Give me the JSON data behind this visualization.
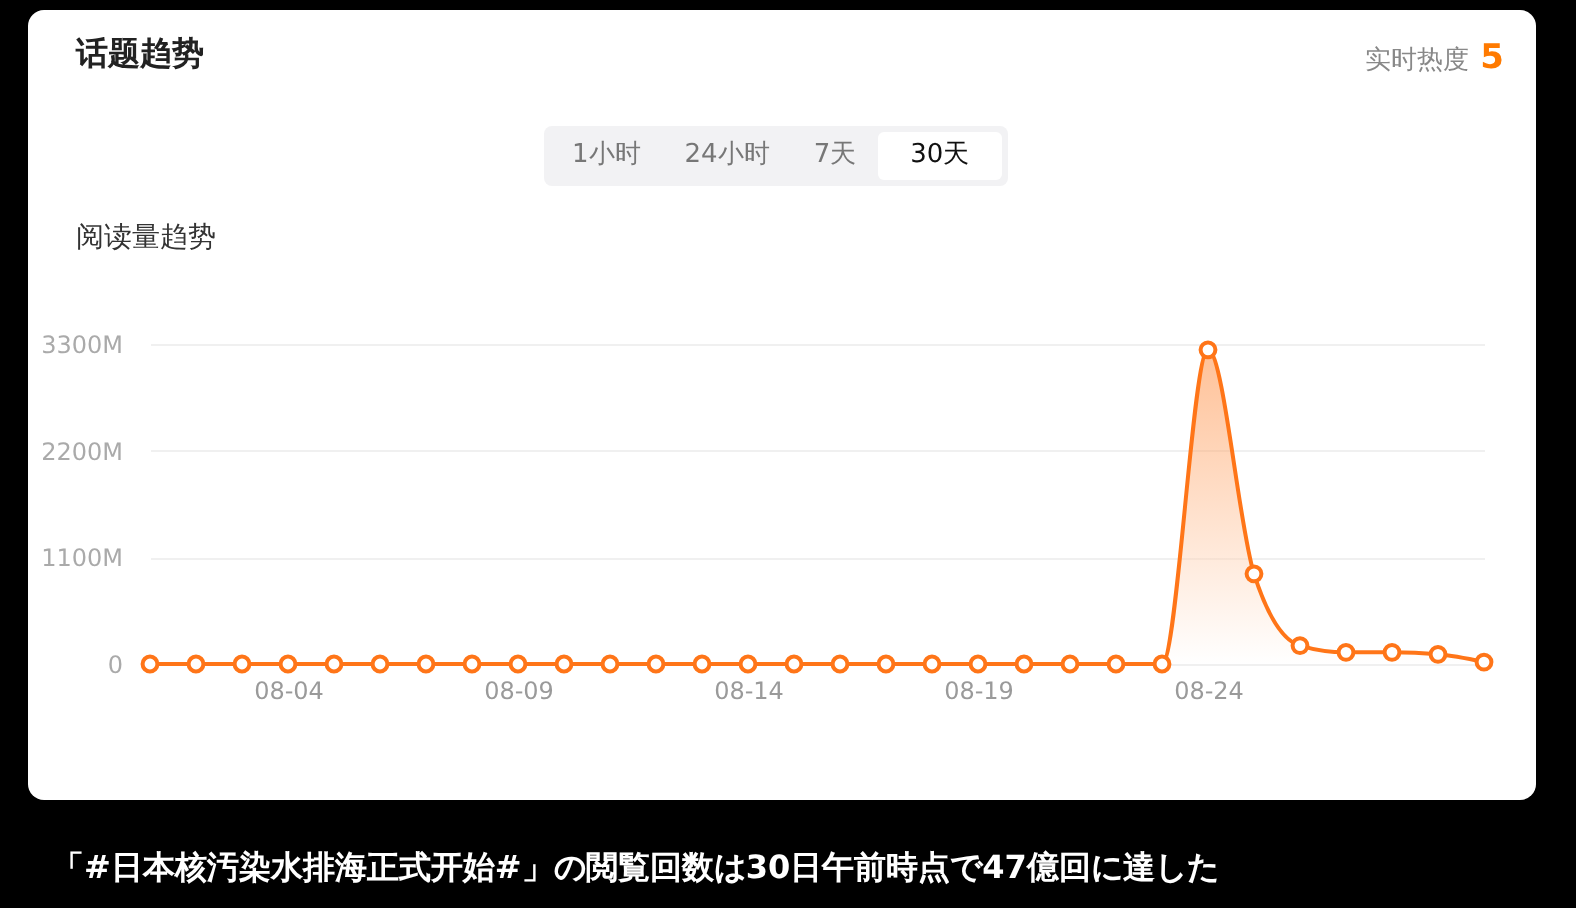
{
  "chart_data": {
    "type": "area",
    "title": "话题趋势",
    "ylabel": "阅读量趋势",
    "annotations": [
      "实时热度",
      "5",
      "1小时",
      "24小时",
      "7天",
      "30天",
      "「#日本核汚染水排海正式开始#」の閲覧回数は30日午前時点で47億回に達した"
    ],
    "categories": [
      null,
      null,
      null,
      "08-04",
      null,
      null,
      null,
      null,
      "08-09",
      null,
      null,
      null,
      null,
      "08-14",
      null,
      null,
      null,
      null,
      "08-19",
      null,
      null,
      null,
      null,
      "08-24",
      null,
      null,
      null,
      null,
      null,
      null
    ],
    "series": [
      {
        "color": "#ff7518",
        "values": [
          0,
          0,
          0,
          0,
          0,
          0,
          0,
          0,
          0,
          0,
          0,
          0,
          0,
          0,
          0,
          0,
          0,
          0,
          0,
          0,
          0,
          0,
          0,
          3240,
          930,
          190,
          120,
          120,
          100,
          20
        ]
      }
    ],
    "ylim": [
      0,
      3300
    ],
    "yticks": [
      0,
      {
        "value": 1100,
        "label": "1100M"
      },
      {
        "value": 2200,
        "label": "2200M"
      },
      {
        "value": 3300,
        "label": "3300M"
      }
    ],
    "grid": "y",
    "marker": "circle",
    "line_style": "solid"
  }
}
